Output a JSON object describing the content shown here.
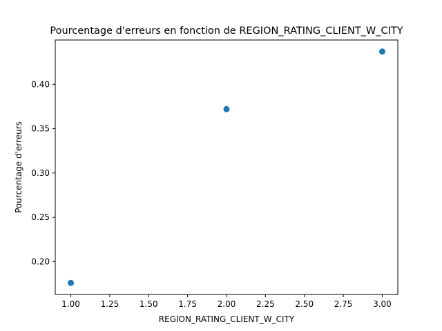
{
  "chart_data": {
    "type": "scatter",
    "title": "Pourcentage d'erreurs en fonction de REGION_RATING_CLIENT_W_CITY",
    "xlabel": "REGION_RATING_CLIENT_W_CITY",
    "ylabel": "Pourcentage d'erreurs",
    "x": [
      1.0,
      2.0,
      3.0
    ],
    "y": [
      0.176,
      0.372,
      0.437
    ],
    "xlim": [
      0.9,
      3.1
    ],
    "ylim": [
      0.163,
      0.45
    ],
    "x_ticks": [
      1.0,
      1.25,
      1.5,
      1.75,
      2.0,
      2.25,
      2.5,
      2.75,
      3.0
    ],
    "x_tick_labels": [
      "1.00",
      "1.25",
      "1.50",
      "1.75",
      "2.00",
      "2.25",
      "2.50",
      "2.75",
      "3.00"
    ],
    "y_ticks": [
      0.2,
      0.25,
      0.3,
      0.35,
      0.4
    ],
    "y_tick_labels": [
      "0.20",
      "0.25",
      "0.30",
      "0.35",
      "0.40"
    ],
    "grid": false,
    "marker_color": "#1f77b4"
  }
}
